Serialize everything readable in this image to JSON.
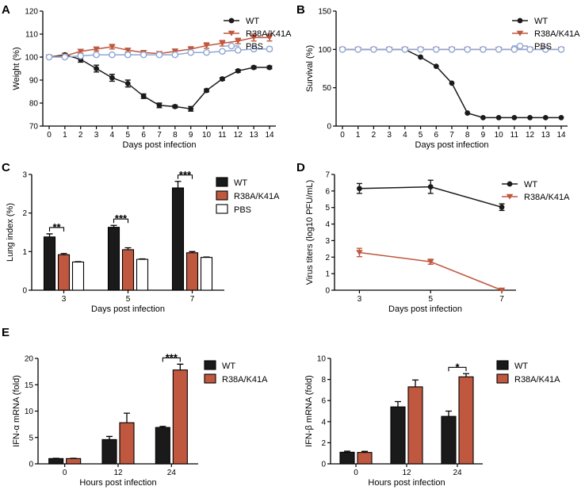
{
  "colors": {
    "wt": "#1a1a1a",
    "mut": "#c0573f",
    "pbs": "#8fa7d4",
    "white": "#ffffff"
  },
  "panels": {
    "A": "A",
    "B": "B",
    "C": "C",
    "D": "D",
    "E": "E"
  },
  "chart_data": [
    {
      "id": "A",
      "type": "line",
      "xlabel": "Days post infection",
      "ylabel": "Weight (%)",
      "x": [
        0,
        1,
        2,
        3,
        4,
        5,
        6,
        7,
        8,
        9,
        10,
        11,
        12,
        13,
        14
      ],
      "x_ticks": [
        "0",
        "1",
        "2",
        "3",
        "4",
        "5",
        "6",
        "7",
        "8",
        "9",
        "10",
        "11",
        "12",
        "13",
        "14"
      ],
      "ylim": [
        70,
        120
      ],
      "y_ticks": [
        "70",
        "80",
        "90",
        "100",
        "110",
        "120"
      ],
      "series": [
        {
          "name": "WT",
          "color": "#1a1a1a",
          "marker": "circle",
          "values": [
            100,
            101,
            99,
            95,
            91,
            88.5,
            83,
            79,
            78.5,
            77.5,
            85.5,
            90.5,
            94,
            95.5,
            95.5
          ],
          "errors": [
            0.5,
            0.6,
            1.2,
            1.5,
            1.5,
            1.5,
            1,
            1,
            0.6,
            1,
            0.6,
            0.6,
            0.6,
            0.6,
            0.6
          ]
        },
        {
          "name": "R38A/K41A",
          "color": "#c0573f",
          "marker": "triangle-down",
          "values": [
            100,
            100.5,
            102.5,
            103.5,
            104.5,
            103,
            102,
            101.5,
            102.5,
            103.5,
            105,
            106,
            107,
            108.5,
            108.5
          ],
          "errors": [
            0.5,
            0.5,
            0.8,
            0.8,
            1,
            0.8,
            0.8,
            0.8,
            1,
            1,
            1.2,
            1.2,
            1.2,
            1.5,
            1.5
          ]
        },
        {
          "name": "PBS",
          "color": "#8fa7d4",
          "marker": "circle-open",
          "values": [
            100,
            100,
            100.5,
            101,
            101,
            101,
            101,
            101,
            101,
            102,
            102,
            102.5,
            103,
            103.5,
            103.5
          ],
          "errors": [
            0.4,
            0.4,
            0.4,
            0.5,
            0.5,
            0.5,
            0.5,
            0.5,
            0.5,
            0.6,
            0.6,
            0.6,
            0.8,
            0.9,
            0.9
          ]
        }
      ]
    },
    {
      "id": "B",
      "type": "line",
      "xlabel": "Days post infection",
      "ylabel": "Survival (%)",
      "x": [
        0,
        1,
        2,
        3,
        4,
        5,
        6,
        7,
        8,
        9,
        10,
        11,
        12,
        13,
        14
      ],
      "x_ticks": [
        "0",
        "1",
        "2",
        "3",
        "4",
        "5",
        "6",
        "7",
        "8",
        "9",
        "10",
        "11",
        "12",
        "13",
        "14"
      ],
      "ylim": [
        0,
        150
      ],
      "y_ticks": [
        "0",
        "50",
        "100",
        "150"
      ],
      "series": [
        {
          "name": "WT",
          "color": "#1a1a1a",
          "marker": "circle",
          "values": [
            100,
            100,
            100,
            100,
            100,
            90,
            78,
            56,
            17,
            11,
            11,
            11,
            11,
            11,
            11
          ]
        },
        {
          "name": "R38A/K41A",
          "color": "#c0573f",
          "marker": "triangle-down",
          "values": [
            100,
            100,
            100,
            100,
            100,
            100,
            100,
            100,
            100,
            100,
            100,
            100,
            100,
            100,
            100
          ]
        },
        {
          "name": "PBS",
          "color": "#8fa7d4",
          "marker": "circle-open",
          "values": [
            100,
            100,
            100,
            100,
            100,
            100,
            100,
            100,
            100,
            100,
            100,
            100,
            100,
            100,
            100
          ]
        }
      ]
    },
    {
      "id": "C",
      "type": "bar",
      "xlabel": "Days post infection",
      "ylabel": "Lung index (%)",
      "categories": [
        "3",
        "5",
        "7"
      ],
      "ylim": [
        0,
        3
      ],
      "y_ticks": [
        "0",
        "1",
        "2",
        "3"
      ],
      "series": [
        {
          "name": "WT",
          "color": "#1a1a1a",
          "values": [
            1.38,
            1.63,
            2.65
          ],
          "errors": [
            0.08,
            0.05,
            0.17
          ]
        },
        {
          "name": "R38A/K41A",
          "color": "#c0573f",
          "values": [
            0.92,
            1.05,
            0.97
          ],
          "errors": [
            0.03,
            0.05,
            0.03
          ]
        },
        {
          "name": "PBS",
          "color": "#ffffff",
          "values": [
            0.73,
            0.8,
            0.85
          ],
          "errors": [
            0.01,
            0.01,
            0.01
          ]
        }
      ],
      "significance": [
        "**",
        "***",
        "***"
      ]
    },
    {
      "id": "D",
      "type": "line",
      "xlabel": "Days post infection",
      "ylabel": "Virus titers (log10 PFU/mL)",
      "x": [
        3,
        5,
        7
      ],
      "x_ticks": [
        "3",
        "5",
        "7"
      ],
      "ylim": [
        0,
        7
      ],
      "y_ticks": [
        "0",
        "1",
        "2",
        "3",
        "4",
        "5",
        "6",
        "7"
      ],
      "series": [
        {
          "name": "WT",
          "color": "#1a1a1a",
          "marker": "circle",
          "values": [
            6.15,
            6.25,
            5.02
          ],
          "errors": [
            0.3,
            0.4,
            0.2
          ]
        },
        {
          "name": "R38A/K41A",
          "color": "#c0573f",
          "marker": "triangle-down",
          "values": [
            2.28,
            1.72,
            0
          ],
          "errors": [
            0.25,
            0.15,
            0
          ]
        }
      ]
    },
    {
      "id": "E1",
      "type": "bar",
      "xlabel": "Hours post infection",
      "ylabel": "IFN-α mRNA (fold)",
      "categories": [
        "0",
        "12",
        "24"
      ],
      "ylim": [
        0,
        20
      ],
      "y_ticks": [
        "0",
        "5",
        "10",
        "15",
        "20"
      ],
      "series": [
        {
          "name": "WT",
          "color": "#1a1a1a",
          "values": [
            1,
            4.6,
            6.9
          ],
          "errors": [
            0.05,
            0.6,
            0.2
          ]
        },
        {
          "name": "R38A/K41A",
          "color": "#c0573f",
          "values": [
            1,
            7.8,
            17.8
          ],
          "errors": [
            0.05,
            1.8,
            1.1
          ]
        }
      ],
      "significance": [
        "",
        "",
        "***"
      ]
    },
    {
      "id": "E2",
      "type": "bar",
      "xlabel": "Hours post infection",
      "ylabel": "IFN-β mRNA (fold)",
      "categories": [
        "0",
        "12",
        "24"
      ],
      "ylim": [
        0,
        10
      ],
      "y_ticks": [
        "0",
        "2",
        "4",
        "6",
        "8",
        "10"
      ],
      "series": [
        {
          "name": "WT",
          "color": "#1a1a1a",
          "values": [
            1.1,
            5.4,
            4.5
          ],
          "errors": [
            0.1,
            0.5,
            0.5
          ]
        },
        {
          "name": "R38A/K41A",
          "color": "#c0573f",
          "values": [
            1.08,
            7.3,
            8.25
          ],
          "errors": [
            0.1,
            0.65,
            0.3
          ]
        }
      ],
      "significance": [
        "",
        "",
        "*"
      ]
    }
  ]
}
